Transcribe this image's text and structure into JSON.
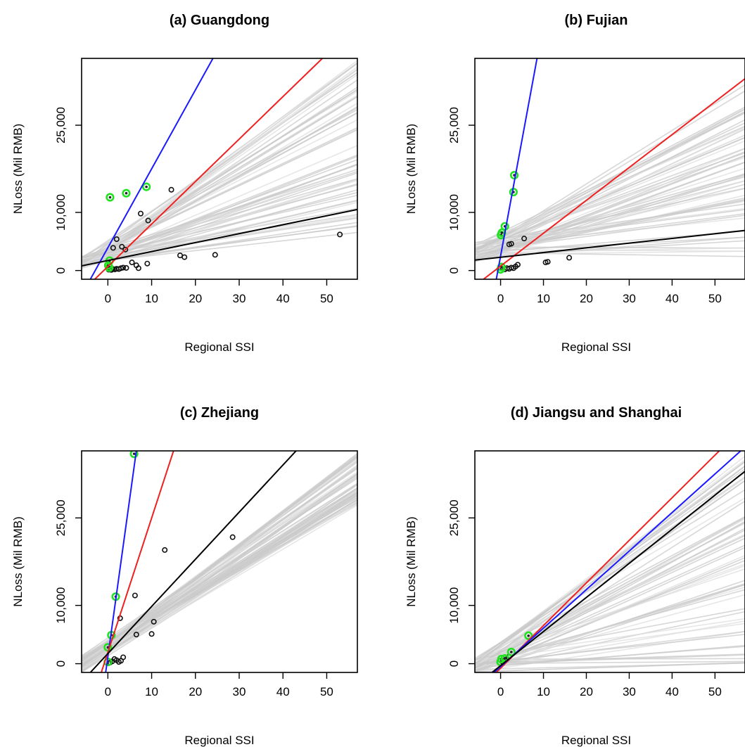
{
  "chart_data": [
    {
      "type": "scatter",
      "title": "(a) Guangdong",
      "xlabel": "Regional SSI",
      "ylabel": "NLoss (Mil RMB)",
      "xlim": [
        -6,
        57
      ],
      "ylim": [
        -1500,
        36500
      ],
      "xticks": [
        0,
        10,
        20,
        30,
        40,
        50
      ],
      "yticks": [
        0,
        10000,
        25000
      ],
      "ytick_labels": [
        "0",
        "10,000",
        "25,000"
      ],
      "lines": [
        {
          "color": "#1a1aff",
          "x": [
            -4,
            24
          ],
          "y": [
            -1500,
            36500
          ]
        },
        {
          "color": "#ee2020",
          "x": [
            -3,
            49
          ],
          "y": [
            -1500,
            36500
          ]
        },
        {
          "color": "#000000",
          "x": [
            -6,
            57
          ],
          "y": [
            800,
            10500
          ]
        }
      ],
      "envelope": {
        "x0": -6,
        "y0_range": [
          300,
          2400
        ],
        "x1": 57,
        "y1_range": [
          6500,
          36500
        ],
        "count": 60
      },
      "points": [
        [
          0.2,
          150
        ],
        [
          0.5,
          300
        ],
        [
          0.8,
          100
        ],
        [
          1.2,
          250
        ],
        [
          1.6,
          200
        ],
        [
          2.0,
          300
        ],
        [
          2.5,
          250
        ],
        [
          3.0,
          400
        ],
        [
          3.5,
          500
        ],
        [
          4.2,
          450
        ],
        [
          5.5,
          1400
        ],
        [
          6.5,
          900
        ],
        [
          7.0,
          400
        ],
        [
          9.0,
          1200
        ],
        [
          1.2,
          3900
        ],
        [
          2.0,
          5400
        ],
        [
          3.2,
          4100
        ],
        [
          4.0,
          3600
        ],
        [
          9.2,
          8600
        ],
        [
          7.5,
          9800
        ],
        [
          14.5,
          13900
        ],
        [
          16.5,
          2600
        ],
        [
          17.5,
          2300
        ],
        [
          24.5,
          2700
        ],
        [
          53,
          6200
        ]
      ],
      "highlighted": [
        [
          0.3,
          500
        ],
        [
          0.1,
          900
        ],
        [
          0.4,
          1700
        ],
        [
          0.5,
          12600
        ],
        [
          4.2,
          13300
        ],
        [
          8.8,
          14400
        ]
      ]
    },
    {
      "type": "scatter",
      "title": "(b) Fujian",
      "xlabel": "Regional SSI",
      "ylabel": "NLoss (Mil RMB)",
      "xlim": [
        -6,
        57
      ],
      "ylim": [
        -1500,
        36500
      ],
      "xticks": [
        0,
        10,
        20,
        30,
        40,
        50
      ],
      "yticks": [
        0,
        10000,
        25000
      ],
      "ytick_labels": [
        "0",
        "10,000",
        "25,000"
      ],
      "lines": [
        {
          "color": "#1a1aff",
          "x": [
            -1,
            8.5
          ],
          "y": [
            -1500,
            36500
          ]
        },
        {
          "color": "#ee2020",
          "x": [
            -4,
            57
          ],
          "y": [
            -1500,
            33000
          ]
        },
        {
          "color": "#000000",
          "x": [
            -6,
            57
          ],
          "y": [
            1800,
            6900
          ]
        }
      ],
      "envelope": {
        "x0": -6,
        "y0_range": [
          1500,
          5000
        ],
        "x1": 57,
        "y1_range": [
          2000,
          33000
        ],
        "count": 60
      },
      "points": [
        [
          1.0,
          200
        ],
        [
          1.5,
          400
        ],
        [
          2.0,
          300
        ],
        [
          2.5,
          500
        ],
        [
          3.0,
          400
        ],
        [
          3.5,
          700
        ],
        [
          4.0,
          1000
        ],
        [
          2.0,
          4500
        ],
        [
          2.5,
          4600
        ],
        [
          5.5,
          5500
        ],
        [
          10.5,
          1400
        ],
        [
          11.0,
          1500
        ],
        [
          16.0,
          2200
        ]
      ],
      "highlighted": [
        [
          0.0,
          200
        ],
        [
          0.2,
          600
        ],
        [
          0.1,
          6100
        ],
        [
          0.3,
          6500
        ],
        [
          1.0,
          7600
        ],
        [
          3.0,
          13500
        ],
        [
          3.2,
          16400
        ]
      ]
    },
    {
      "type": "scatter",
      "title": "(c) Zhejiang",
      "xlabel": "Regional SSI",
      "ylabel": "NLoss (Mil RMB)",
      "xlim": [
        -6,
        57
      ],
      "ylim": [
        -1500,
        36500
      ],
      "xticks": [
        0,
        10,
        20,
        30,
        40,
        50
      ],
      "yticks": [
        0,
        10000,
        25000
      ],
      "ytick_labels": [
        "0",
        "10,000",
        "25,000"
      ],
      "lines": [
        {
          "color": "#1a1aff",
          "x": [
            -0.5,
            6.5
          ],
          "y": [
            -1500,
            36500
          ]
        },
        {
          "color": "#ee2020",
          "x": [
            -1.5,
            15
          ],
          "y": [
            -1500,
            36500
          ]
        },
        {
          "color": "#000000",
          "x": [
            -4,
            43
          ],
          "y": [
            -1500,
            36500
          ]
        }
      ],
      "envelope": {
        "x0": -6,
        "y0_range": [
          -1500,
          1500
        ],
        "x1": 57,
        "y1_range": [
          27000,
          36500
        ],
        "count": 60
      },
      "points": [
        [
          0.5,
          200
        ],
        [
          1.0,
          400
        ],
        [
          1.5,
          800
        ],
        [
          2.0,
          600
        ],
        [
          2.5,
          300
        ],
        [
          3.0,
          500
        ],
        [
          3.5,
          1100
        ],
        [
          2.8,
          7800
        ],
        [
          6.5,
          5000
        ],
        [
          10.0,
          5100
        ],
        [
          10.5,
          7200
        ],
        [
          6.2,
          11700
        ],
        [
          13.0,
          19500
        ],
        [
          28.5,
          21700
        ]
      ],
      "highlighted": [
        [
          0.0,
          300
        ],
        [
          0.0,
          2800
        ],
        [
          0.8,
          4900
        ],
        [
          1.8,
          11500
        ],
        [
          6.0,
          36000
        ]
      ]
    },
    {
      "type": "scatter",
      "title": "(d) Jiangsu and Shanghai",
      "xlabel": "Regional SSI",
      "ylabel": "NLoss (Mil RMB)",
      "xlim": [
        -6,
        57
      ],
      "ylim": [
        -1500,
        36500
      ],
      "xticks": [
        0,
        10,
        20,
        30,
        40,
        50
      ],
      "yticks": [
        0,
        10000,
        25000
      ],
      "ytick_labels": [
        "0",
        "10,000",
        "25,000"
      ],
      "lines": [
        {
          "color": "#ee2020",
          "x": [
            -1,
            51
          ],
          "y": [
            -1500,
            36500
          ]
        },
        {
          "color": "#1a1aff",
          "x": [
            -1.5,
            56
          ],
          "y": [
            -1500,
            36500
          ]
        },
        {
          "color": "#000000",
          "x": [
            -2,
            57
          ],
          "y": [
            -1500,
            33000
          ]
        }
      ],
      "envelope": {
        "x0": -6,
        "y0_range": [
          -1500,
          1000
        ],
        "x1": 57,
        "y1_range": [
          0,
          36500
        ],
        "count": 60
      },
      "points": [
        [
          0.5,
          300
        ],
        [
          1.0,
          600
        ],
        [
          1.5,
          800
        ],
        [
          2.0,
          1200
        ]
      ],
      "highlighted": [
        [
          0.0,
          300
        ],
        [
          0.2,
          800
        ],
        [
          1.0,
          900
        ],
        [
          2.5,
          2000
        ],
        [
          6.5,
          4800
        ]
      ]
    }
  ]
}
